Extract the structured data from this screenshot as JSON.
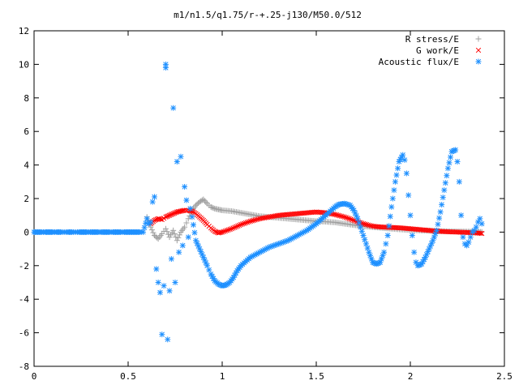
{
  "chart_data": {
    "type": "scatter",
    "title": "m1/n1.5/q1.75/r-+.25-j130/M50.0/512",
    "xlabel": "",
    "ylabel": "",
    "xlim": [
      0,
      2.5
    ],
    "ylim": [
      -8,
      12
    ],
    "xticks": [
      "0",
      "0.5",
      "1",
      "1.5",
      "2",
      "2.5"
    ],
    "yticks": [
      "-8",
      "-6",
      "-4",
      "-2",
      "0",
      "2",
      "4",
      "6",
      "8",
      "10",
      "12"
    ],
    "legend_position": "top-right",
    "grid": false,
    "series": [
      {
        "name": "R stress/E",
        "marker": "plus",
        "color": "#a0a0a0",
        "x": [
          0.6,
          0.62,
          0.64,
          0.66,
          0.68,
          0.7,
          0.72,
          0.74,
          0.76,
          0.78,
          0.8,
          0.82,
          0.84,
          0.86,
          0.88,
          0.9,
          0.92,
          0.94,
          0.96,
          0.98,
          1.0,
          1.05,
          1.1,
          1.15,
          1.2,
          1.25,
          1.3,
          1.35,
          1.4,
          1.45,
          1.5,
          1.55,
          1.6,
          1.65,
          1.7,
          1.75,
          1.8,
          1.85,
          1.9,
          1.95,
          2.0,
          2.05,
          2.1,
          2.15,
          2.2,
          2.25,
          2.3,
          2.35,
          2.38
        ],
        "y": [
          0.9,
          0.3,
          -0.2,
          -0.4,
          -0.1,
          0.2,
          -0.3,
          0.1,
          -0.5,
          0.0,
          0.3,
          0.8,
          1.3,
          1.6,
          1.8,
          1.95,
          1.7,
          1.5,
          1.4,
          1.35,
          1.3,
          1.25,
          1.15,
          1.05,
          0.95,
          0.9,
          0.85,
          0.8,
          0.75,
          0.7,
          0.65,
          0.62,
          0.58,
          0.5,
          0.42,
          0.35,
          0.3,
          0.25,
          0.2,
          0.16,
          0.12,
          0.1,
          0.08,
          0.06,
          0.05,
          0.04,
          0.03,
          0.02,
          0.01
        ]
      },
      {
        "name": "G work/E",
        "marker": "cross",
        "color": "#ff0000",
        "x": [
          0.62,
          0.64,
          0.66,
          0.68,
          0.7,
          0.72,
          0.74,
          0.76,
          0.78,
          0.8,
          0.82,
          0.84,
          0.86,
          0.88,
          0.9,
          0.92,
          0.94,
          0.96,
          0.98,
          1.0,
          1.05,
          1.1,
          1.15,
          1.2,
          1.25,
          1.3,
          1.35,
          1.4,
          1.45,
          1.5,
          1.55,
          1.6,
          1.65,
          1.7,
          1.75,
          1.8,
          1.85,
          1.9,
          1.95,
          2.0,
          2.05,
          2.1,
          2.15,
          2.2,
          2.25,
          2.3,
          2.35,
          2.38
        ],
        "y": [
          0.5,
          0.7,
          0.8,
          0.75,
          0.9,
          1.0,
          1.1,
          1.2,
          1.25,
          1.3,
          1.3,
          1.25,
          1.1,
          0.9,
          0.7,
          0.45,
          0.25,
          0.05,
          -0.05,
          0.0,
          0.2,
          0.45,
          0.65,
          0.8,
          0.9,
          1.0,
          1.05,
          1.1,
          1.15,
          1.2,
          1.15,
          1.05,
          0.9,
          0.7,
          0.5,
          0.35,
          0.3,
          0.28,
          0.25,
          0.2,
          0.15,
          0.1,
          0.05,
          0.02,
          0.0,
          -0.02,
          -0.05,
          -0.08
        ]
      },
      {
        "name": "Acoustic flux/E",
        "marker": "star",
        "color": "#1e90ff",
        "x": [
          0.0,
          0.02,
          0.04,
          0.06,
          0.08,
          0.1,
          0.12,
          0.14,
          0.16,
          0.18,
          0.2,
          0.22,
          0.24,
          0.26,
          0.28,
          0.3,
          0.32,
          0.34,
          0.36,
          0.38,
          0.4,
          0.42,
          0.44,
          0.46,
          0.48,
          0.5,
          0.52,
          0.54,
          0.56,
          0.58,
          0.6,
          0.61,
          0.62,
          0.63,
          0.64,
          0.65,
          0.66,
          0.67,
          0.68,
          0.69,
          0.7,
          0.7,
          0.71,
          0.72,
          0.73,
          0.74,
          0.75,
          0.76,
          0.77,
          0.78,
          0.79,
          0.8,
          0.81,
          0.82,
          0.83,
          0.84,
          0.86,
          0.88,
          0.9,
          0.92,
          0.94,
          0.96,
          0.98,
          1.0,
          1.02,
          1.04,
          1.06,
          1.08,
          1.1,
          1.15,
          1.2,
          1.25,
          1.3,
          1.35,
          1.4,
          1.45,
          1.5,
          1.55,
          1.6,
          1.62,
          1.65,
          1.68,
          1.7,
          1.72,
          1.75,
          1.78,
          1.8,
          1.82,
          1.84,
          1.86,
          1.88,
          1.9,
          1.92,
          1.94,
          1.96,
          1.97,
          1.98,
          1.99,
          2.0,
          2.01,
          2.02,
          2.03,
          2.04,
          2.06,
          2.08,
          2.1,
          2.12,
          2.14,
          2.16,
          2.18,
          2.2,
          2.22,
          2.24,
          2.25,
          2.26,
          2.27,
          2.28,
          2.29,
          2.3,
          2.31,
          2.32,
          2.33,
          2.34,
          2.35,
          2.36,
          2.37,
          2.38
        ],
        "y": [
          0,
          0,
          0,
          0,
          0,
          0,
          0,
          0,
          0,
          0,
          0,
          0,
          0,
          0,
          0,
          0,
          0,
          0,
          0,
          0,
          0,
          0,
          0,
          0,
          0,
          0,
          0,
          0,
          0,
          0,
          0.8,
          0.5,
          0.6,
          1.8,
          2.1,
          -2.2,
          -3.0,
          -3.6,
          -6.1,
          -3.2,
          10.0,
          9.8,
          -6.4,
          -3.5,
          -1.6,
          7.4,
          -3.0,
          4.2,
          -1.2,
          4.5,
          -0.8,
          2.7,
          1.9,
          -0.3,
          1.4,
          0.9,
          -0.5,
          -1.0,
          -1.5,
          -2.0,
          -2.5,
          -2.9,
          -3.1,
          -3.2,
          -3.15,
          -3.0,
          -2.7,
          -2.3,
          -2.0,
          -1.5,
          -1.2,
          -0.9,
          -0.7,
          -0.5,
          -0.2,
          0.1,
          0.5,
          1.0,
          1.5,
          1.65,
          1.7,
          1.6,
          1.3,
          0.8,
          -0.2,
          -1.2,
          -1.8,
          -1.9,
          -1.8,
          -1.2,
          -0.2,
          1.5,
          3.0,
          4.2,
          4.6,
          4.3,
          3.5,
          2.2,
          1.0,
          -0.2,
          -1.2,
          -1.8,
          -2.0,
          -1.9,
          -1.5,
          -1.0,
          -0.5,
          0.1,
          1.2,
          2.5,
          3.8,
          4.8,
          4.9,
          4.2,
          3.0,
          1.0,
          -0.3,
          -0.7,
          -0.8,
          -0.6,
          -0.3,
          0.0,
          0.1,
          0.3,
          0.6,
          0.8,
          0.5
        ]
      }
    ]
  }
}
